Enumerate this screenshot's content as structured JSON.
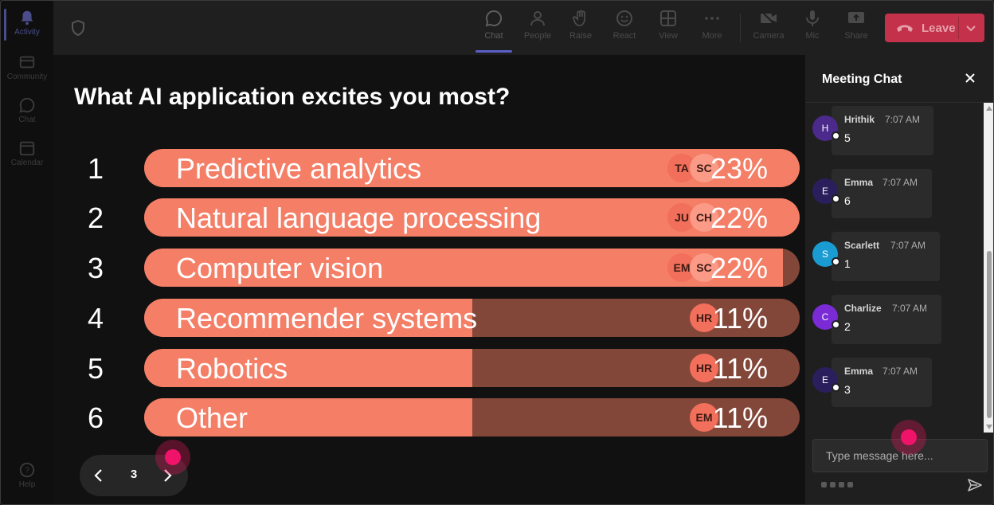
{
  "rail": {
    "items": [
      {
        "label": "Activity",
        "icon": "bell-icon",
        "active": true
      },
      {
        "label": "Community",
        "icon": "community-icon"
      },
      {
        "label": "Chat",
        "icon": "chat-icon"
      },
      {
        "label": "Calendar",
        "icon": "calendar-icon"
      }
    ],
    "help_label": "Help"
  },
  "toolbar": {
    "chat": "Chat",
    "people": "People",
    "raise": "Raise",
    "react": "React",
    "view": "View",
    "more": "More",
    "camera": "Camera",
    "mic": "Mic",
    "share": "Share",
    "leave": "Leave"
  },
  "poll": {
    "question": "What AI application excites you most?",
    "options": [
      {
        "num": "1",
        "label": "Predictive analytics",
        "percent": "23%",
        "fill": 100,
        "avatars": [
          "TA",
          "SC"
        ]
      },
      {
        "num": "2",
        "label": "Natural language processing",
        "percent": "22%",
        "fill": 100,
        "avatars": [
          "JU",
          "CH"
        ]
      },
      {
        "num": "3",
        "label": "Computer vision",
        "percent": "22%",
        "fill": 97.5,
        "avatars": [
          "EM",
          "SC"
        ]
      },
      {
        "num": "4",
        "label": "Recommender systems",
        "percent": "11%",
        "fill": 50,
        "avatars": [
          "HR"
        ]
      },
      {
        "num": "5",
        "label": "Robotics",
        "percent": "11%",
        "fill": 50,
        "avatars": [
          "HR"
        ]
      },
      {
        "num": "6",
        "label": "Other",
        "percent": "11%",
        "fill": 50,
        "avatars": [
          "EM"
        ]
      }
    ]
  },
  "pager": {
    "page": "3"
  },
  "chat": {
    "title": "Meeting Chat",
    "messages": [
      {
        "initial": "H",
        "name": "Hrithik",
        "time": "7:07 AM",
        "text": "5",
        "color": "#4b2a8c"
      },
      {
        "initial": "E",
        "name": "Emma",
        "time": "7:07 AM",
        "text": "6",
        "color": "#2a1f5c"
      },
      {
        "initial": "S",
        "name": "Scarlett",
        "time": "7:07 AM",
        "text": "1",
        "color": "#1a9bd1"
      },
      {
        "initial": "C",
        "name": "Charlize",
        "time": "7:07 AM",
        "text": "2",
        "color": "#7a2bd6"
      },
      {
        "initial": "E",
        "name": "Emma",
        "time": "7:07 AM",
        "text": "3",
        "color": "#2a1f5c"
      }
    ],
    "compose_placeholder": "Type message here..."
  },
  "colors": {
    "bar_fill": "#f47e66",
    "bar_track": "#83473a",
    "leave": "#c4314b",
    "accent": "#5b5fc7"
  }
}
